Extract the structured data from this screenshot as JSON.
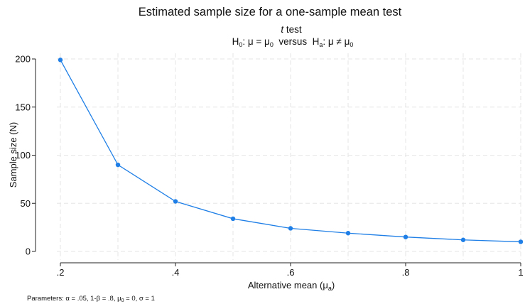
{
  "chart_data": {
    "type": "line",
    "title": "Estimated sample size for a one-sample mean test",
    "subtitle_test_italic": "t",
    "subtitle_test_rest": " test",
    "hypothesis": {
      "h0_label": "H",
      "h0_sub": "0",
      "h0_rel": ": μ = μ",
      "h0_rel_sub": "0",
      "versus": "  versus  ",
      "ha_label": "H",
      "ha_sub": "a",
      "ha_rel": ": μ ≠ μ",
      "ha_rel_sub": "0"
    },
    "xlabel_main": "Alternative mean (μ",
    "xlabel_sub": "a",
    "xlabel_close": ")",
    "ylabel": "Sample size (N)",
    "xlim": [
      0.2,
      1.0
    ],
    "ylim": [
      0,
      200
    ],
    "x_ticks": [
      0.2,
      0.4,
      0.6,
      0.8,
      1.0
    ],
    "x_tick_labels": [
      ".2",
      ".4",
      ".6",
      ".8",
      "1"
    ],
    "x_minor_grid": [
      0.3,
      0.5,
      0.7,
      0.9
    ],
    "y_ticks": [
      0,
      50,
      100,
      150,
      200
    ],
    "y_tick_labels": [
      "0",
      "50",
      "100",
      "150",
      "200"
    ],
    "grid": true,
    "series": [
      {
        "color": "#1f7fe6",
        "x": [
          0.2,
          0.3,
          0.4,
          0.5,
          0.6,
          0.7,
          0.8,
          0.9,
          1.0
        ],
        "y": [
          199,
          90,
          52,
          34,
          24,
          19,
          15,
          12,
          10
        ]
      }
    ],
    "note_parts": [
      {
        "t": "Parameters: α = .05, 1-β = .8, μ"
      },
      {
        "t": "0",
        "sub": true
      },
      {
        "t": " = 0, σ = 1"
      }
    ]
  }
}
